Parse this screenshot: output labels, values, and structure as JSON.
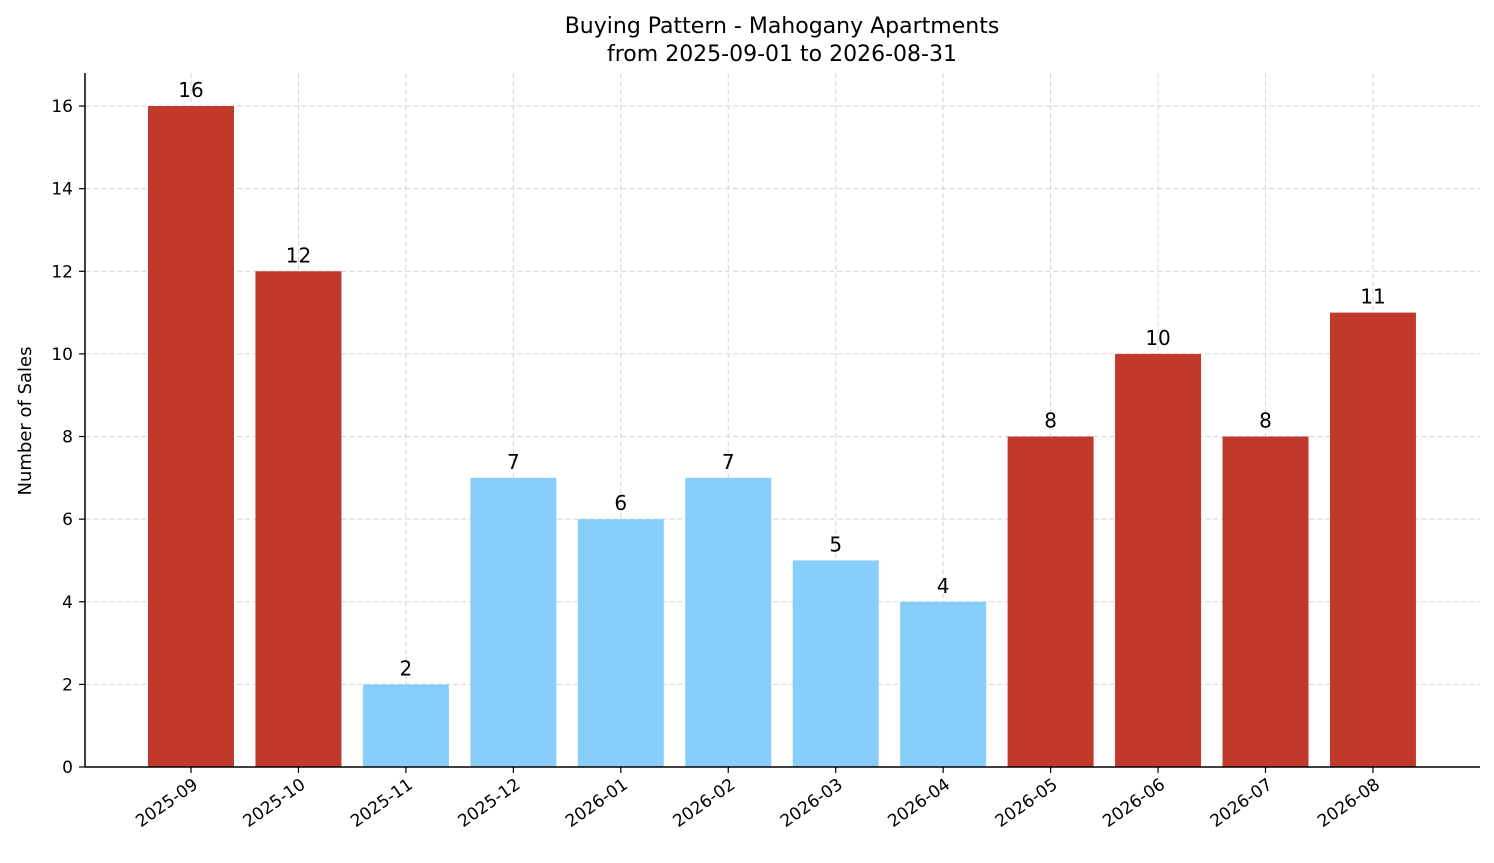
{
  "chart_data": {
    "type": "bar",
    "title": "Buying Pattern - Mahogany Apartments",
    "subtitle": "from 2025-09-01 to 2026-08-31",
    "xlabel": "",
    "ylabel": "Number of Sales",
    "categories": [
      "2025-09",
      "2025-10",
      "2025-11",
      "2025-12",
      "2026-01",
      "2026-02",
      "2026-03",
      "2026-04",
      "2026-05",
      "2026-06",
      "2026-07",
      "2026-08"
    ],
    "values": [
      16,
      12,
      2,
      7,
      6,
      7,
      5,
      4,
      8,
      10,
      8,
      11
    ],
    "bar_colors": [
      "#c0392b",
      "#c0392b",
      "#87cefa",
      "#87cefa",
      "#87cefa",
      "#87cefa",
      "#87cefa",
      "#87cefa",
      "#c0392b",
      "#c0392b",
      "#c0392b",
      "#c0392b"
    ],
    "data_labels": [
      "16",
      "12",
      "2",
      "7",
      "6",
      "7",
      "5",
      "4",
      "8",
      "10",
      "8",
      "11"
    ],
    "ylim": [
      0,
      16.8
    ],
    "yticks": [
      0,
      2,
      4,
      6,
      8,
      10,
      12,
      14,
      16
    ],
    "grid": true,
    "legend": "none"
  }
}
